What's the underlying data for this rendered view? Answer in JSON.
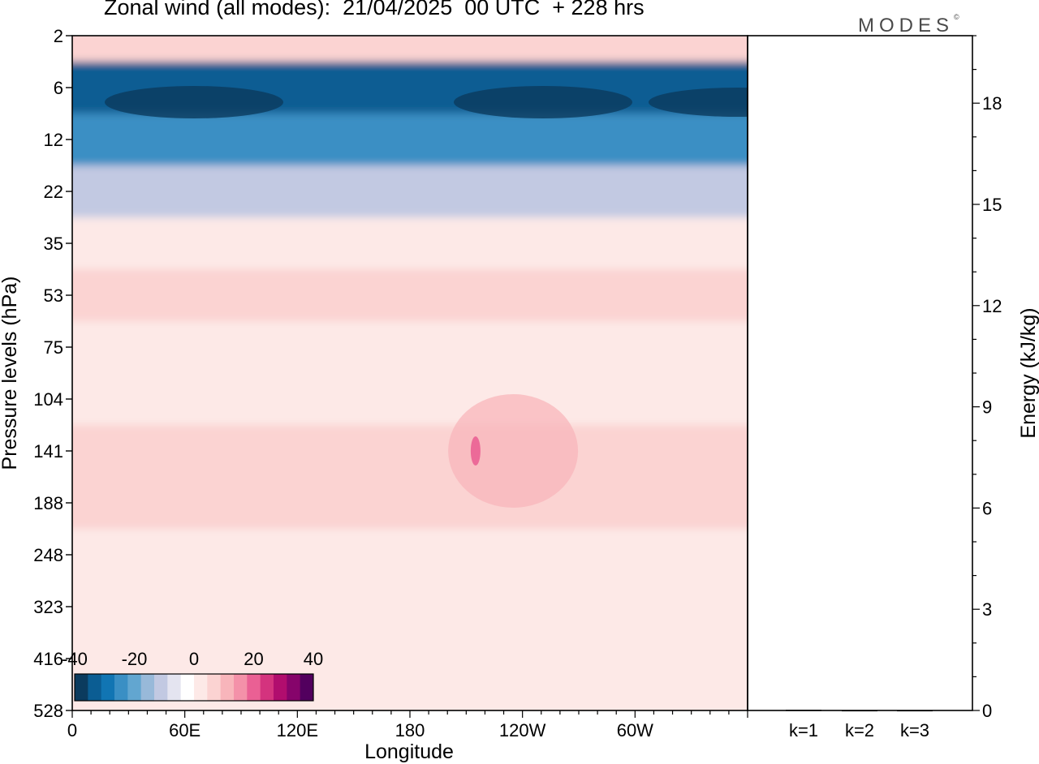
{
  "title": "Zonal wind (all modes):  21/04/2025  00 UTC  + 228 hrs",
  "logo": "MODES",
  "logo_mark": "©",
  "colors": {
    "blues": [
      "#0b3b5e",
      "#0b5d93",
      "#1175b3",
      "#3a8fc4",
      "#62a6d0",
      "#98b9d9",
      "#c2c9e2",
      "#e4e4f0"
    ],
    "neutral": "#ffffff",
    "pinks": [
      "#fde9e7",
      "#fbd3d2",
      "#f8b5bb",
      "#f491a9",
      "#ea6094",
      "#d4337e",
      "#b10d6e",
      "#86046b",
      "#52005e"
    ],
    "background_field": "#f5f0f6"
  },
  "chart_data": [
    {
      "type": "heatmap",
      "title": "Zonal wind (all modes):  21/04/2025  00 UTC  + 228 hrs",
      "xlabel": "Longitude",
      "ylabel": "Pressure levels (hPa)",
      "x_ticks": [
        "0",
        "60E",
        "120E",
        "180",
        "120W",
        "60W"
      ],
      "x_tick_values": [
        0,
        60,
        120,
        180,
        240,
        300
      ],
      "xlim": [
        0,
        360
      ],
      "y_ticks": [
        "2",
        "6",
        "12",
        "22",
        "35",
        "53",
        "75",
        "104",
        "141",
        "188",
        "248",
        "323",
        "416",
        "528"
      ],
      "y_scale": "irregular pressure levels, top to bottom",
      "colorbar": {
        "labels": [
          "-40",
          "-20",
          "0",
          "20",
          "40"
        ],
        "label_values": [
          -40,
          -20,
          0,
          20,
          40
        ],
        "range": [
          -40,
          40
        ],
        "placement": "bottom-left inside plot"
      },
      "approx_profile": [
        {
          "level": "2",
          "u": 8
        },
        {
          "level": "6",
          "u": -35
        },
        {
          "level": "12",
          "u": -25
        },
        {
          "level": "22",
          "u": -12
        },
        {
          "level": "35",
          "u": 2
        },
        {
          "level": "53",
          "u": 6
        },
        {
          "level": "75",
          "u": 4
        },
        {
          "level": "104",
          "u": 1
        },
        {
          "level": "141",
          "u": 6
        },
        {
          "level": "188",
          "u": 5
        },
        {
          "level": "248",
          "u": 4
        },
        {
          "level": "323",
          "u": 2
        },
        {
          "level": "416",
          "u": 0
        },
        {
          "level": "528",
          "u": 0
        }
      ]
    },
    {
      "type": "bar",
      "categories": [
        "k=1",
        "k=2",
        "k=3"
      ],
      "values": [
        0.02,
        0.01,
        0.01
      ],
      "ylabel": "Energy (kJ/kg)",
      "y_ticks": [
        "0",
        "3",
        "6",
        "9",
        "12",
        "15",
        "18"
      ],
      "y_tick_values": [
        0,
        3,
        6,
        9,
        12,
        15,
        18
      ],
      "ylim": [
        0,
        20
      ],
      "axis_side": "right"
    }
  ]
}
